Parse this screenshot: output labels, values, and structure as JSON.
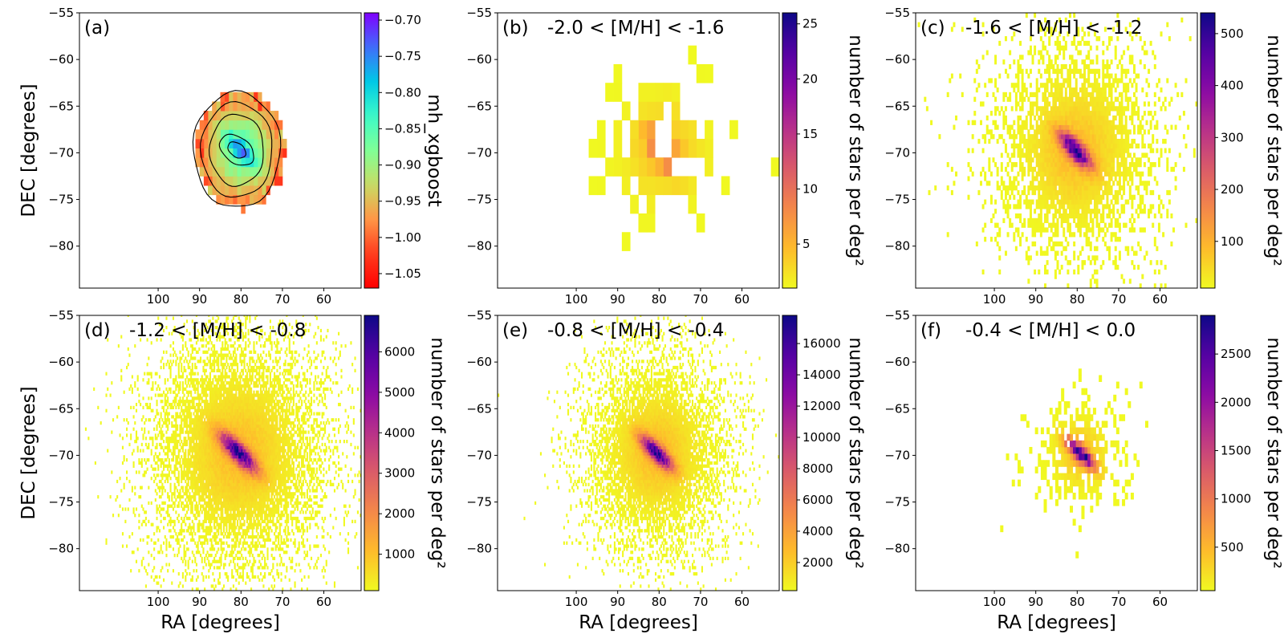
{
  "chart_data": [
    {
      "type": "heatmap",
      "panel_tag": "(a)",
      "title": "",
      "xlabel": "",
      "ylabel": "DEC [degrees]",
      "xlim": [
        119,
        51
      ],
      "ylim": [
        -84.5,
        -55
      ],
      "x_ticks": [
        100,
        90,
        80,
        70,
        60
      ],
      "x_tick_labels": [
        "100",
        "90",
        "80",
        "70",
        "60"
      ],
      "y_ticks": [
        -55,
        -60,
        -65,
        -70,
        -75,
        -80
      ],
      "y_tick_labels": [
        "−55",
        "−60",
        "−65",
        "−70",
        "−75",
        "−80"
      ],
      "colorbar": {
        "label": "mh_xgboost",
        "colormap": "rainbow",
        "range": [
          -1.07,
          -0.69
        ],
        "reversed": false,
        "ticks": [
          -0.7,
          -0.75,
          -0.8,
          -0.85,
          -0.9,
          -0.95,
          -1.0,
          -1.05
        ],
        "tick_labels": [
          "−0.70",
          "−0.75",
          "−0.80",
          "−0.85",
          "−0.90",
          "−0.95",
          "−1.00",
          "−1.05"
        ]
      },
      "density_model": {
        "center_ra": 81,
        "center_dec": -69.7,
        "spread_ra": 10.5,
        "spread_dec": 6.2,
        "bar_angle_deg": 22,
        "bar_length": 3.5,
        "bar_width": 0.7,
        "value_center": -0.72,
        "value_edge": -1.03
      },
      "contours": true,
      "bin_size": 1.0
    },
    {
      "type": "heatmap",
      "panel_tag": "(b)",
      "title": "-2.0 < [M/H] < -1.6",
      "xlabel": "",
      "ylabel": "",
      "xlim": [
        119,
        51
      ],
      "ylim": [
        -84.5,
        -55
      ],
      "x_ticks": [
        100,
        90,
        80,
        70,
        60
      ],
      "x_tick_labels": [
        "100",
        "90",
        "80",
        "70",
        "60"
      ],
      "y_ticks": [
        -55,
        -60,
        -65,
        -70,
        -75,
        -80
      ],
      "y_tick_labels": [
        "−55",
        "−60",
        "−65",
        "−70",
        "−75",
        "−80"
      ],
      "colorbar": {
        "label": "number of stars per deg²",
        "colormap": "plasma",
        "reversed": true,
        "range": [
          1,
          26
        ],
        "ticks": [
          5,
          10,
          15,
          20,
          25
        ],
        "tick_labels": [
          "5",
          "10",
          "15",
          "20",
          "25"
        ]
      },
      "density_model": {
        "center_ra": 81,
        "center_dec": -69.7,
        "spread_ra": 12,
        "spread_dec": 7,
        "bar_angle_deg": 22,
        "bar_length": 2.5,
        "bar_width": 0.8,
        "peak": 26,
        "occupancy": 0.55
      },
      "bin_size": 2.0
    },
    {
      "type": "heatmap",
      "panel_tag": "(c)",
      "title": "-1.6 < [M/H] < -1.2",
      "xlabel": "",
      "ylabel": "",
      "xlim": [
        119,
        51
      ],
      "ylim": [
        -84.5,
        -55
      ],
      "x_ticks": [
        100,
        90,
        80,
        70,
        60
      ],
      "x_tick_labels": [
        "100",
        "90",
        "80",
        "70",
        "60"
      ],
      "y_ticks": [
        -55,
        -60,
        -65,
        -70,
        -75,
        -80
      ],
      "y_tick_labels": [
        "−55",
        "−60",
        "−65",
        "−70",
        "−75",
        "−80"
      ],
      "colorbar": {
        "label": "number of stars per deg²",
        "colormap": "plasma",
        "reversed": true,
        "range": [
          10,
          540
        ],
        "ticks": [
          100,
          200,
          300,
          400,
          500
        ],
        "tick_labels": [
          "100",
          "200",
          "300",
          "400",
          "500"
        ]
      },
      "density_model": {
        "center_ra": 81,
        "center_dec": -69.7,
        "spread_ra": 14,
        "spread_dec": 8.5,
        "bar_angle_deg": 22,
        "bar_length": 3,
        "bar_width": 0.8,
        "peak": 540,
        "occupancy": 0.9
      },
      "bin_size": 0.5
    },
    {
      "type": "heatmap",
      "panel_tag": "(d)",
      "title": "-1.2 < [M/H] < -0.8",
      "xlabel": "RA [degrees]",
      "ylabel": "DEC [degrees]",
      "xlim": [
        119,
        51
      ],
      "ylim": [
        -84.5,
        -55
      ],
      "x_ticks": [
        100,
        90,
        80,
        70,
        60
      ],
      "x_tick_labels": [
        "100",
        "90",
        "80",
        "70",
        "60"
      ],
      "y_ticks": [
        -55,
        -60,
        -65,
        -70,
        -75,
        -80
      ],
      "y_tick_labels": [
        "−55",
        "−60",
        "−65",
        "−70",
        "−75",
        "−80"
      ],
      "colorbar": {
        "label": "number of stars per deg²",
        "colormap": "plasma",
        "reversed": true,
        "range": [
          100,
          6900
        ],
        "ticks": [
          1000,
          2000,
          3000,
          4000,
          5000,
          6000
        ],
        "tick_labels": [
          "1000",
          "2000",
          "3000",
          "4000",
          "5000",
          "6000"
        ]
      },
      "density_model": {
        "center_ra": 81,
        "center_dec": -69.7,
        "spread_ra": 15,
        "spread_dec": 9,
        "bar_angle_deg": 22,
        "bar_length": 3.5,
        "bar_width": 0.8,
        "peak": 6900,
        "occupancy": 0.95
      },
      "bin_size": 0.33
    },
    {
      "type": "heatmap",
      "panel_tag": "(e)",
      "title": "-0.8 < [M/H] < -0.4",
      "xlabel": "RA [degrees]",
      "ylabel": "",
      "xlim": [
        119,
        51
      ],
      "ylim": [
        -84.5,
        -55
      ],
      "x_ticks": [
        100,
        90,
        80,
        70,
        60
      ],
      "x_tick_labels": [
        "100",
        "90",
        "80",
        "70",
        "60"
      ],
      "y_ticks": [
        -55,
        -60,
        -65,
        -70,
        -75,
        -80
      ],
      "y_tick_labels": [
        "−55",
        "−60",
        "−65",
        "−70",
        "−75",
        "−80"
      ],
      "colorbar": {
        "label": "number of stars per deg²",
        "colormap": "plasma",
        "reversed": true,
        "range": [
          200,
          17800
        ],
        "ticks": [
          2000,
          4000,
          6000,
          8000,
          10000,
          12000,
          14000,
          16000
        ],
        "tick_labels": [
          "2000",
          "4000",
          "6000",
          "8000",
          "10000",
          "12000",
          "14000",
          "16000"
        ]
      },
      "density_model": {
        "center_ra": 81,
        "center_dec": -69.7,
        "spread_ra": 12,
        "spread_dec": 7.5,
        "bar_angle_deg": 22,
        "bar_length": 3,
        "bar_width": 0.7,
        "peak": 17800,
        "occupancy": 0.95
      },
      "bin_size": 0.33
    },
    {
      "type": "heatmap",
      "panel_tag": "(f)",
      "title": "-0.4 < [M/H] < 0.0",
      "xlabel": "RA [degrees]",
      "ylabel": "",
      "xlim": [
        119,
        51
      ],
      "ylim": [
        -84.5,
        -55
      ],
      "x_ticks": [
        100,
        90,
        80,
        70,
        60
      ],
      "x_tick_labels": [
        "100",
        "90",
        "80",
        "70",
        "60"
      ],
      "y_ticks": [
        -55,
        -60,
        -65,
        -70,
        -75,
        -80
      ],
      "y_tick_labels": [
        "−55",
        "−60",
        "−65",
        "−70",
        "−75",
        "−80"
      ],
      "colorbar": {
        "label": "number of stars per deg²",
        "colormap": "plasma",
        "reversed": true,
        "range": [
          50,
          2900
        ],
        "ticks": [
          500,
          1000,
          1500,
          2000,
          2500
        ],
        "tick_labels": [
          "500",
          "1000",
          "1500",
          "2000",
          "2500"
        ]
      },
      "density_model": {
        "center_ra": 80,
        "center_dec": -69.8,
        "spread_ra": 7.5,
        "spread_dec": 4.3,
        "bar_angle_deg": 22,
        "bar_length": 3,
        "bar_width": 0.6,
        "peak": 2900,
        "occupancy": 0.75
      },
      "bin_size": 0.7
    }
  ]
}
